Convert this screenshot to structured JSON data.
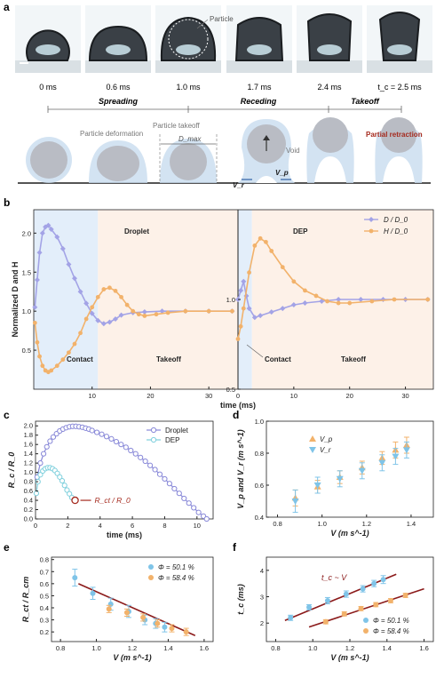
{
  "panel_labels": {
    "a": "a",
    "b": "b",
    "c": "c",
    "d": "d",
    "e": "e",
    "f": "f"
  },
  "panel_a": {
    "photo_times": [
      "0 ms",
      "0.6 ms",
      "1.0 ms",
      "1.7 ms",
      "2.4 ms",
      "t_c = 2.5 ms"
    ],
    "particle_label": "Particle",
    "phases": [
      "Spreading",
      "Receding",
      "Takeoff"
    ],
    "schematic_labels": {
      "particle_deformation": "Particle deformation",
      "particle_takeoff": "Particle takeoff",
      "dmax": "D_max",
      "void": "Void",
      "vp": "V_p",
      "vr": "V_r",
      "partial_retraction": "Partial retraction"
    },
    "colors": {
      "drop_photo": "#cfe6ef",
      "drop_schematic": "#c8dcef",
      "particle": "#b9bcc4",
      "accent_red": "#a52a1e"
    }
  },
  "chart_data": [
    {
      "id": "b",
      "type": "line",
      "ylabel": "Normalized D and H",
      "xlabel": "time (ms)",
      "legend": [
        "D / D_0",
        "H / D_0"
      ],
      "annotations": [
        "Droplet",
        "DEP",
        "Contact",
        "Takeoff",
        "Contact",
        "Takeoff"
      ],
      "left": {
        "xlim": [
          0,
          35
        ],
        "ylim": [
          0,
          2.3
        ],
        "xticks": [
          "10",
          "20",
          "30"
        ],
        "yticks": [
          "0.5",
          "1.0",
          "1.5",
          "2.0"
        ],
        "D": [
          [
            0.2,
            1.05
          ],
          [
            0.6,
            1.4
          ],
          [
            1,
            1.75
          ],
          [
            1.5,
            2.0
          ],
          [
            2,
            2.08
          ],
          [
            2.5,
            2.1
          ],
          [
            3,
            2.05
          ],
          [
            4,
            1.95
          ],
          [
            5,
            1.8
          ],
          [
            6,
            1.6
          ],
          [
            7,
            1.42
          ],
          [
            8,
            1.25
          ],
          [
            9,
            1.1
          ],
          [
            10,
            0.97
          ],
          [
            11,
            0.88
          ],
          [
            12,
            0.84
          ],
          [
            13,
            0.86
          ],
          [
            14,
            0.9
          ],
          [
            15,
            0.95
          ],
          [
            17,
            0.98
          ],
          [
            19,
            0.99
          ],
          [
            22,
            1.0
          ],
          [
            26,
            1.0
          ],
          [
            30,
            1.0
          ],
          [
            34,
            1.0
          ]
        ],
        "H": [
          [
            0.2,
            0.85
          ],
          [
            0.6,
            0.6
          ],
          [
            1,
            0.42
          ],
          [
            1.5,
            0.3
          ],
          [
            2,
            0.24
          ],
          [
            2.5,
            0.22
          ],
          [
            3,
            0.24
          ],
          [
            4,
            0.3
          ],
          [
            5,
            0.38
          ],
          [
            6,
            0.47
          ],
          [
            7,
            0.58
          ],
          [
            8,
            0.72
          ],
          [
            9,
            0.9
          ],
          [
            10,
            1.05
          ],
          [
            11,
            1.18
          ],
          [
            12,
            1.28
          ],
          [
            13,
            1.3
          ],
          [
            14,
            1.26
          ],
          [
            15,
            1.18
          ],
          [
            16,
            1.08
          ],
          [
            17,
            1.0
          ],
          [
            18,
            0.96
          ],
          [
            19,
            0.94
          ],
          [
            21,
            0.96
          ],
          [
            23,
            0.98
          ],
          [
            26,
            1.0
          ],
          [
            30,
            1.0
          ],
          [
            34,
            1.0
          ]
        ],
        "contact_end": 11
      },
      "right": {
        "xlim": [
          0,
          35
        ],
        "ylim": [
          0.5,
          1.5
        ],
        "xticks": [
          "0",
          "10",
          "20",
          "30"
        ],
        "yticks": [
          "0.5",
          "1.0"
        ],
        "D": [
          [
            0,
            1.0
          ],
          [
            0.5,
            1.05
          ],
          [
            1,
            1.1
          ],
          [
            1.5,
            1.02
          ],
          [
            2,
            0.95
          ],
          [
            3,
            0.9
          ],
          [
            4,
            0.91
          ],
          [
            6,
            0.93
          ],
          [
            8,
            0.95
          ],
          [
            10,
            0.97
          ],
          [
            12,
            0.98
          ],
          [
            15,
            0.99
          ],
          [
            18,
            1.0
          ],
          [
            22,
            1.0
          ],
          [
            26,
            1.0
          ],
          [
            30,
            1.0
          ],
          [
            34,
            1.0
          ]
        ],
        "H": [
          [
            0,
            0.78
          ],
          [
            0.5,
            0.85
          ],
          [
            1,
            0.95
          ],
          [
            2,
            1.15
          ],
          [
            3,
            1.3
          ],
          [
            4,
            1.34
          ],
          [
            5,
            1.32
          ],
          [
            6,
            1.27
          ],
          [
            8,
            1.18
          ],
          [
            10,
            1.1
          ],
          [
            12,
            1.05
          ],
          [
            14,
            1.02
          ],
          [
            16,
            0.99
          ],
          [
            18,
            0.98
          ],
          [
            20,
            0.98
          ],
          [
            24,
            0.99
          ],
          [
            28,
            1.0
          ],
          [
            34,
            1.0
          ]
        ],
        "contact_end": 2.5
      },
      "colors": {
        "D": "#a3a3e6",
        "H": "#f2b26b"
      }
    },
    {
      "id": "c",
      "type": "line",
      "xlabel": "time (ms)",
      "ylabel": "R_c / R_0",
      "xlim": [
        0,
        11
      ],
      "ylim": [
        0,
        2.1
      ],
      "xticks": [
        "0",
        "2",
        "4",
        "6",
        "8",
        "10"
      ],
      "yticks": [
        "0.0",
        "0.2",
        "0.4",
        "0.6",
        "0.8",
        "1.0",
        "1.2",
        "1.4",
        "1.6",
        "1.8",
        "2.0"
      ],
      "legend": [
        "Droplet",
        "DEP"
      ],
      "annotation": "R_ct / R_0",
      "series": [
        {
          "name": "Droplet",
          "color": "#8888d8",
          "x": [
            0.1,
            0.3,
            0.5,
            0.7,
            0.9,
            1.1,
            1.3,
            1.5,
            1.7,
            1.9,
            2.1,
            2.3,
            2.5,
            2.7,
            2.9,
            3.1,
            3.3,
            3.5,
            3.8,
            4.1,
            4.4,
            4.7,
            5.0,
            5.3,
            5.6,
            5.9,
            6.2,
            6.5,
            6.8,
            7.1,
            7.4,
            7.7,
            8.0,
            8.3,
            8.6,
            8.9,
            9.2,
            9.5,
            9.8,
            10.1,
            10.4,
            10.6
          ],
          "y": [
            0.9,
            1.2,
            1.4,
            1.55,
            1.67,
            1.76,
            1.83,
            1.89,
            1.93,
            1.96,
            1.98,
            1.99,
            1.99,
            1.98,
            1.97,
            1.95,
            1.93,
            1.9,
            1.86,
            1.82,
            1.77,
            1.72,
            1.66,
            1.6,
            1.54,
            1.47,
            1.4,
            1.32,
            1.24,
            1.15,
            1.06,
            0.96,
            0.86,
            0.76,
            0.65,
            0.55,
            0.44,
            0.34,
            0.24,
            0.14,
            0.06,
            0.0
          ]
        },
        {
          "name": "DEP",
          "color": "#7fd0dd",
          "x": [
            0.05,
            0.15,
            0.3,
            0.45,
            0.6,
            0.75,
            0.9,
            1.05,
            1.2,
            1.35,
            1.5,
            1.65,
            1.8,
            1.95,
            2.1,
            2.25,
            2.4
          ],
          "y": [
            0.55,
            0.8,
            0.95,
            1.03,
            1.08,
            1.1,
            1.1,
            1.08,
            1.04,
            0.98,
            0.9,
            0.82,
            0.72,
            0.62,
            0.54,
            0.46,
            0.4
          ]
        }
      ]
    },
    {
      "id": "d",
      "type": "scatter",
      "xlabel": "V (m s^-1)",
      "ylabel": "V_p and V_r (m s^-1)",
      "xlim": [
        0.75,
        1.5
      ],
      "ylim": [
        0.4,
        1.0
      ],
      "xticks": [
        "0.8",
        "1.0",
        "1.2",
        "1.4"
      ],
      "yticks": [
        "0.4",
        "0.6",
        "0.8",
        "1.0"
      ],
      "legend": [
        "V_p",
        "V_r"
      ],
      "series": [
        {
          "name": "V_p",
          "color": "#f2b26b",
          "x": [
            0.88,
            0.98,
            1.08,
            1.18,
            1.27,
            1.33,
            1.38
          ],
          "y": [
            0.52,
            0.59,
            0.65,
            0.71,
            0.77,
            0.82,
            0.85
          ],
          "err": [
            0.05,
            0.04,
            0.04,
            0.04,
            0.04,
            0.05,
            0.05
          ]
        },
        {
          "name": "V_r",
          "color": "#7fc4e8",
          "x": [
            0.88,
            0.98,
            1.08,
            1.18,
            1.27,
            1.33,
            1.38
          ],
          "y": [
            0.5,
            0.6,
            0.64,
            0.69,
            0.74,
            0.78,
            0.82
          ],
          "err": [
            0.07,
            0.05,
            0.05,
            0.05,
            0.05,
            0.05,
            0.05
          ]
        }
      ]
    },
    {
      "id": "e",
      "type": "scatter",
      "xlabel": "V (m s^-1)",
      "ylabel": "R_ct / R_cm",
      "xlim": [
        0.75,
        1.65
      ],
      "ylim": [
        0.12,
        0.82
      ],
      "xticks": [
        "0.8",
        "1.0",
        "1.2",
        "1.4",
        "1.6"
      ],
      "yticks": [
        "0.2",
        "0.3",
        "0.4",
        "0.5",
        "0.6",
        "0.7",
        "0.8"
      ],
      "legend": [
        "Φ = 50.1 %",
        "Φ = 58.4 %"
      ],
      "series": [
        {
          "name": "Φ = 50.1 %",
          "color": "#7fc4e8",
          "x": [
            0.88,
            0.98,
            1.08,
            1.18,
            1.27,
            1.33,
            1.38
          ],
          "y": [
            0.65,
            0.52,
            0.43,
            0.37,
            0.3,
            0.27,
            0.24
          ],
          "err": [
            0.07,
            0.05,
            0.05,
            0.05,
            0.04,
            0.04,
            0.04
          ]
        },
        {
          "name": "Φ = 58.4 %",
          "color": "#f2b26b",
          "x": [
            1.07,
            1.17,
            1.26,
            1.34,
            1.42,
            1.5
          ],
          "y": [
            0.39,
            0.36,
            0.32,
            0.27,
            0.23,
            0.2
          ],
          "err": [
            0.03,
            0.03,
            0.03,
            0.03,
            0.03,
            0.03
          ]
        }
      ],
      "fit": {
        "x": [
          0.9,
          1.55
        ],
        "y": [
          0.6,
          0.17
        ],
        "color": "#8b1a1a"
      }
    },
    {
      "id": "f",
      "type": "scatter",
      "xlabel": "V (m s^-1)",
      "ylabel": "t_c (ms)",
      "xlim": [
        0.75,
        1.65
      ],
      "ylim": [
        1.3,
        4.5
      ],
      "xticks": [
        "0.8",
        "1.0",
        "1.2",
        "1.4",
        "1.6"
      ],
      "yticks": [
        "2",
        "3",
        "4"
      ],
      "legend": [
        "Φ = 50.1 %",
        "Φ = 58.4 %"
      ],
      "annotation": "t_c ~ V",
      "series": [
        {
          "name": "Φ = 50.1 %",
          "color": "#7fc4e8",
          "x": [
            0.88,
            0.98,
            1.08,
            1.18,
            1.27,
            1.33,
            1.38
          ],
          "y": [
            2.2,
            2.6,
            2.85,
            3.1,
            3.3,
            3.5,
            3.65
          ],
          "err": [
            0.1,
            0.1,
            0.12,
            0.12,
            0.12,
            0.12,
            0.15
          ]
        },
        {
          "name": "Φ = 58.4 %",
          "color": "#f2b26b",
          "x": [
            1.07,
            1.17,
            1.26,
            1.34,
            1.42,
            1.5
          ],
          "y": [
            2.05,
            2.35,
            2.55,
            2.7,
            2.85,
            3.05
          ],
          "err": [
            0.08,
            0.08,
            0.08,
            0.08,
            0.08,
            0.08
          ]
        }
      ],
      "fits": [
        {
          "x": [
            0.85,
            1.45
          ],
          "y": [
            2.1,
            3.85
          ],
          "color": "#8b1a1a"
        },
        {
          "x": [
            0.98,
            1.6
          ],
          "y": [
            1.85,
            3.3
          ],
          "color": "#8b1a1a"
        }
      ]
    }
  ]
}
